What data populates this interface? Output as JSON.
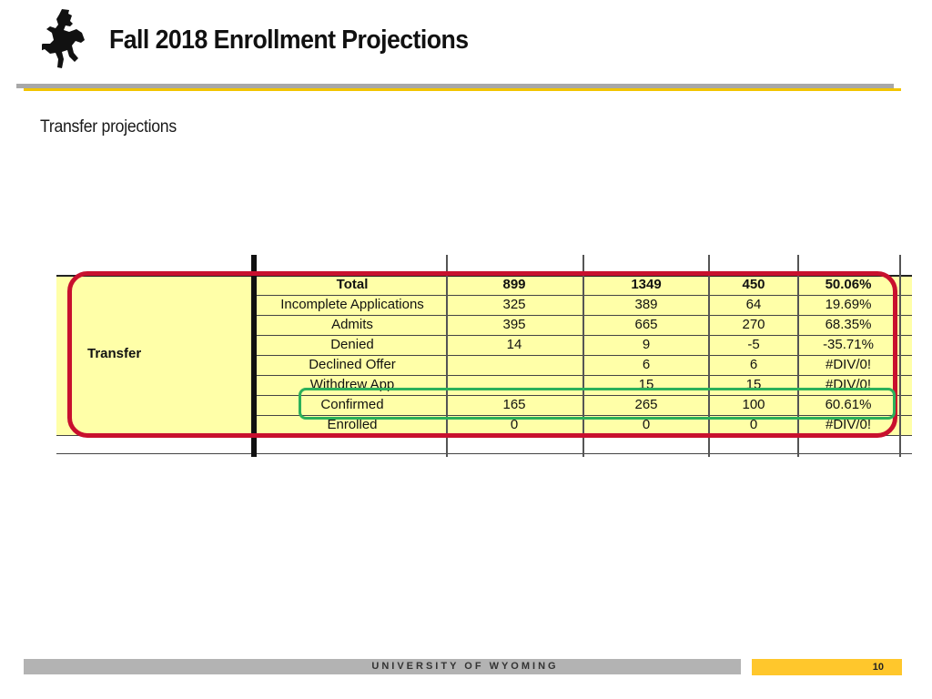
{
  "header": {
    "title": "Fall 2018 Enrollment Projections"
  },
  "content": {
    "subtitle": "Transfer projections"
  },
  "table": {
    "group_label": "Transfer",
    "rows": [
      {
        "label": "Total",
        "c1": "899",
        "c2": "1349",
        "c3": "450",
        "c4": "50.06%"
      },
      {
        "label": "Incomplete Applications",
        "c1": "325",
        "c2": "389",
        "c3": "64",
        "c4": "19.69%"
      },
      {
        "label": "Admits",
        "c1": "395",
        "c2": "665",
        "c3": "270",
        "c4": "68.35%"
      },
      {
        "label": "Denied",
        "c1": "14",
        "c2": "9",
        "c3": "-5",
        "c4": "-35.71%"
      },
      {
        "label": "Declined Offer",
        "c1": "",
        "c2": "6",
        "c3": "6",
        "c4": "#DIV/0!"
      },
      {
        "label": "Withdrew App",
        "c1": "",
        "c2": "15",
        "c3": "15",
        "c4": "#DIV/0!"
      },
      {
        "label": "Confirmed",
        "c1": "165",
        "c2": "265",
        "c3": "100",
        "c4": "60.61%"
      },
      {
        "label": "Enrolled",
        "c1": "0",
        "c2": "0",
        "c3": "0",
        "c4": "#DIV/0!"
      }
    ]
  },
  "footer": {
    "university": "UNIVERSITY OF WYOMING",
    "page_number": "10"
  },
  "colors": {
    "gold": "#ffc72c",
    "highlight_red": "#c8102e",
    "highlight_green": "#2bb05a",
    "sheet_yellow": "#ffffa8"
  },
  "icons": {
    "logo": "bucking-horse-rider-icon"
  }
}
